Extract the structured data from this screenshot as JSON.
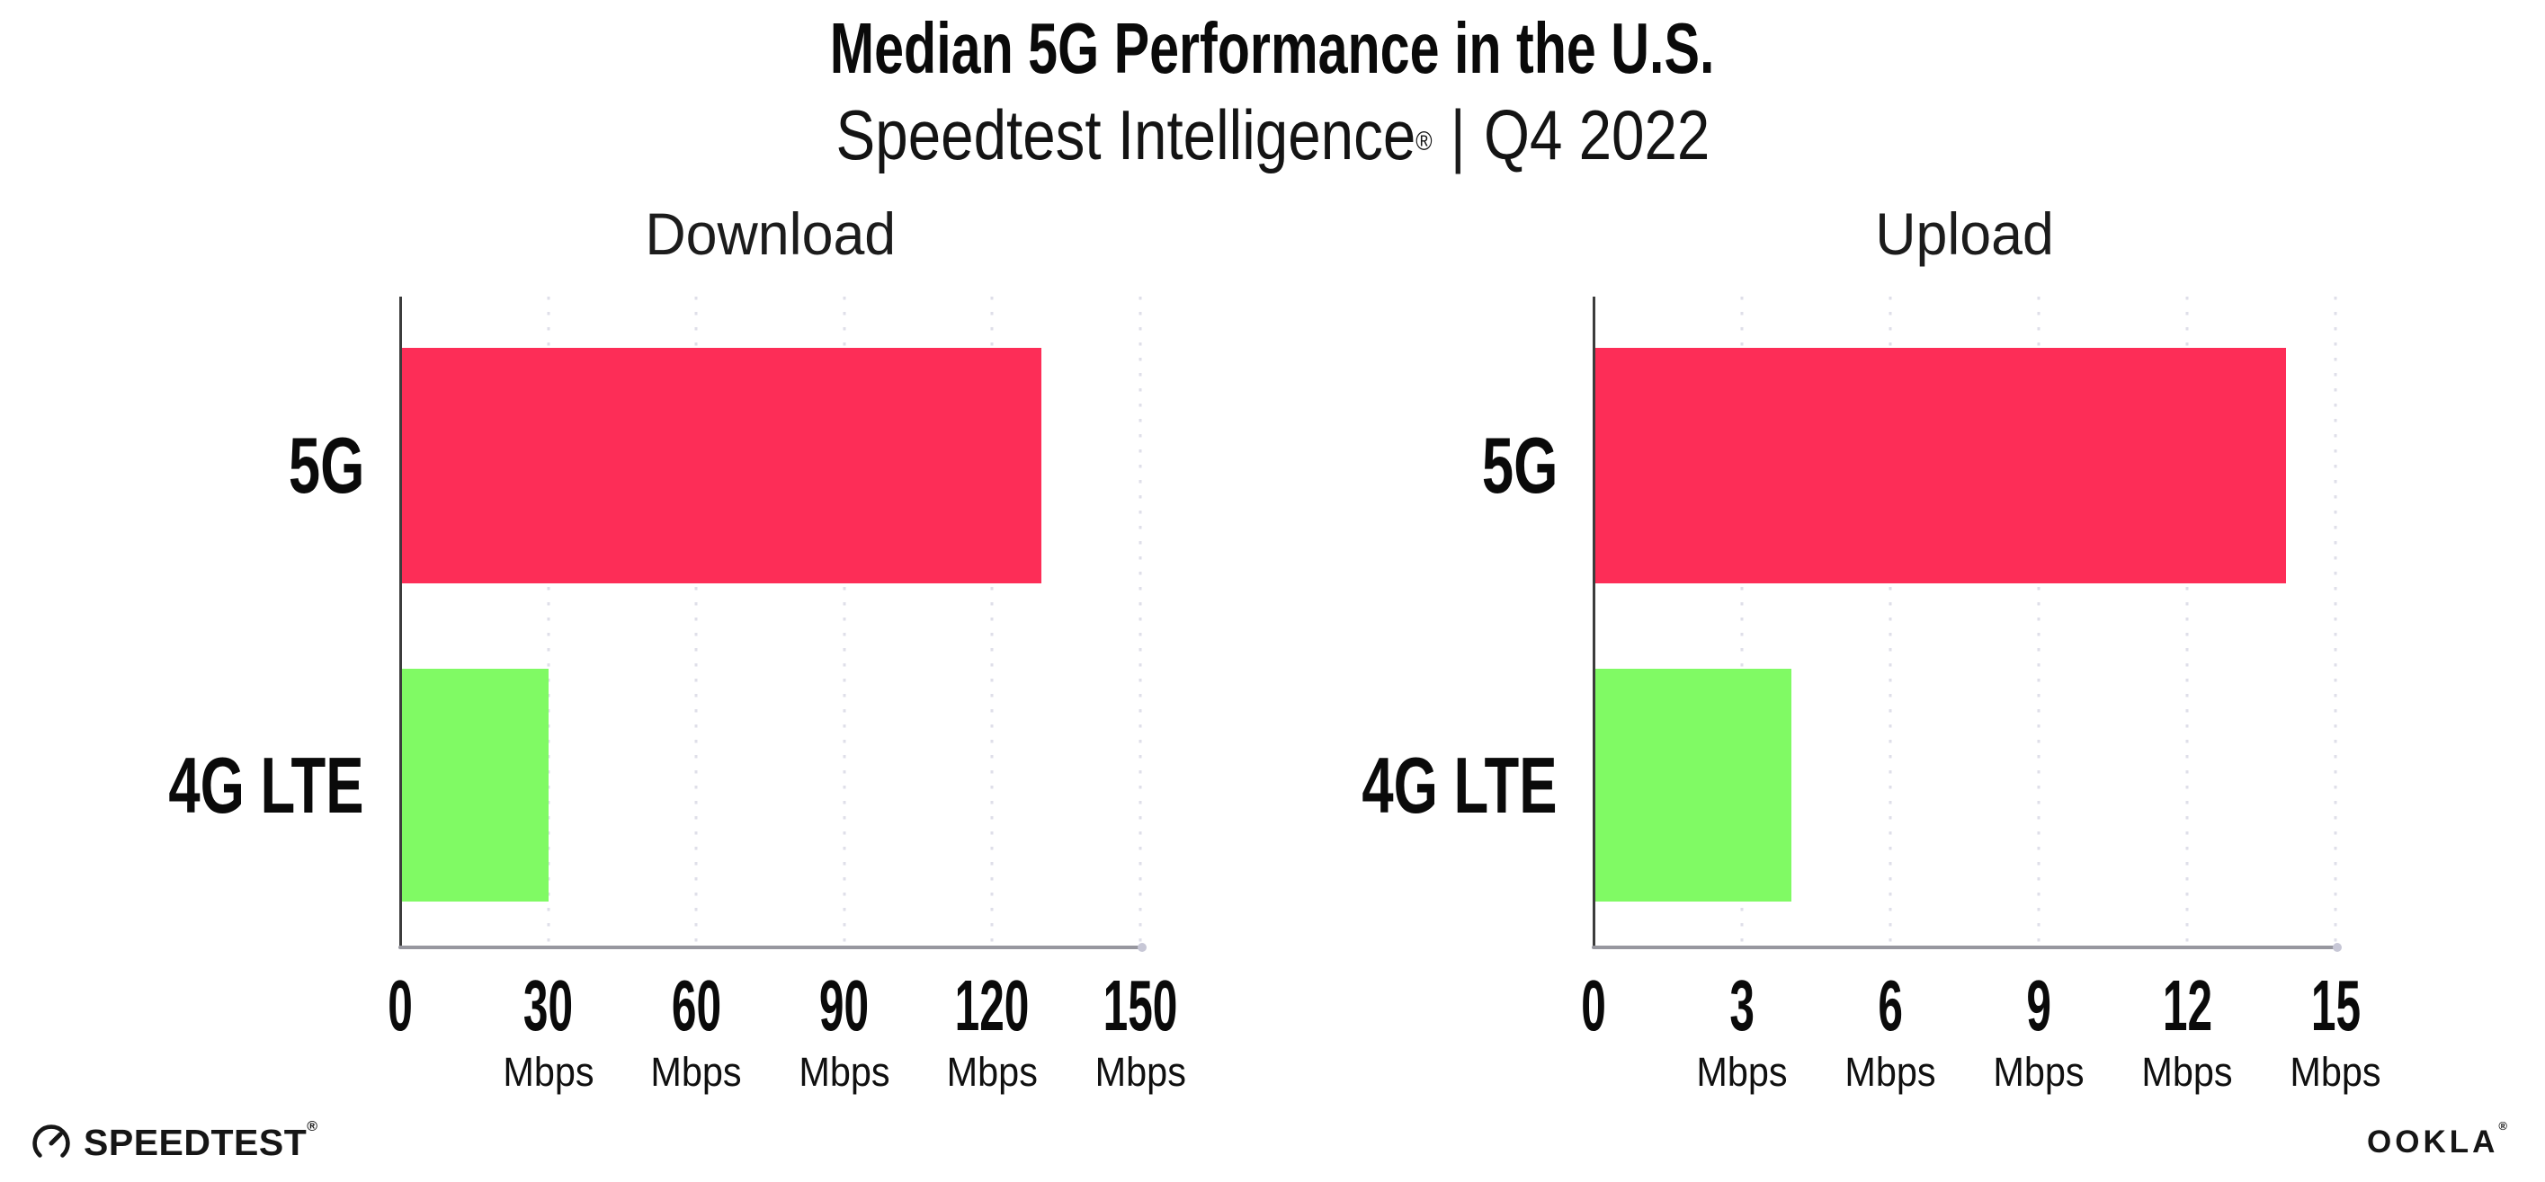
{
  "header": {
    "title": "Median 5G Performance in the U.S.",
    "brand": "Speedtest Intelligence",
    "registered": "®",
    "separator": "|",
    "period": "Q4 2022"
  },
  "chart_data": {
    "type": "bar",
    "orientation": "horizontal",
    "categories": [
      "5G",
      "4G LTE"
    ],
    "bar_colors": [
      "#FD2D57",
      "#80FA64"
    ],
    "grid": "vertical-dotted",
    "legend": "none",
    "charts": [
      {
        "title": "Download",
        "tick_unit": "Mbps",
        "xlim": [
          0,
          150
        ],
        "ticks": [
          0,
          30,
          60,
          90,
          120,
          150
        ],
        "series": [
          {
            "name": "5G",
            "value": 130
          },
          {
            "name": "4G LTE",
            "value": 30
          }
        ]
      },
      {
        "title": "Upload",
        "tick_unit": "Mbps",
        "xlim": [
          0,
          15
        ],
        "ticks": [
          0,
          3,
          6,
          9,
          12,
          15
        ],
        "series": [
          {
            "name": "5G",
            "value": 14
          },
          {
            "name": "4G LTE",
            "value": 4
          }
        ]
      }
    ]
  },
  "colors": {
    "bar_5g": "#FD2D57",
    "bar_4g": "#80FA64",
    "x_axis": "#97979F",
    "y_axis": "#3C3C3C",
    "gridline": "#DFDFE9",
    "text": "#0A0A0A"
  },
  "footer": {
    "speedtest": "SPEEDTEST",
    "speedtest_mark": "®",
    "ookla": "OOKLA",
    "ookla_mark": "®"
  }
}
